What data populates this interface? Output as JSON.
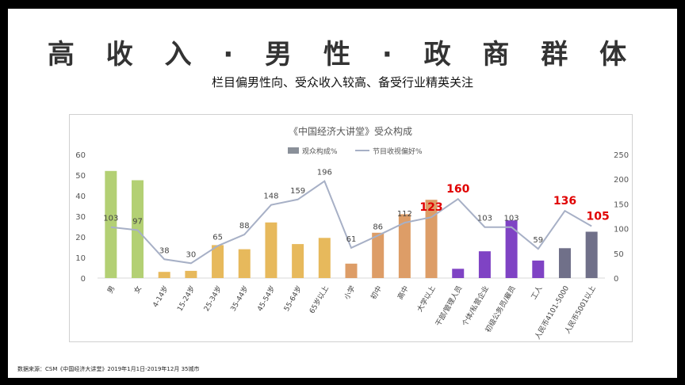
{
  "slide": {
    "title": "高 收 入 · 男 性 · 政 商 群 体",
    "subtitle": "栏目偏男性向、受众收入较高、备受行业精英关注",
    "source": "数据来源：CSM《中国经济大讲堂》2019年1月1日-2019年12月 35城市"
  },
  "chart_data": {
    "type": "bar",
    "title": "《中国经济大讲堂》受众构成",
    "categories": [
      "男",
      "女",
      "4-14岁",
      "15-24岁",
      "25-34岁",
      "35-44岁",
      "45-54岁",
      "55-64岁",
      "65岁以上",
      "小学",
      "初中",
      "高中",
      "大学以上",
      "干部/管理人员",
      "个体/私营企业",
      "初级公务员/雇员",
      "工人",
      "人民币4101-5000",
      "人民币5001以上"
    ],
    "series": [
      {
        "name": "观众构成%",
        "type": "bar",
        "axis": "left",
        "values": [
          52,
          47.5,
          3,
          3.5,
          16,
          14,
          27,
          16.5,
          19.5,
          7,
          22,
          31,
          38,
          4.5,
          13,
          28,
          8.5,
          14.5,
          22.5
        ],
        "colors": [
          "#b3d074",
          "#b3d074",
          "#e7b95c",
          "#e7b95c",
          "#e7b95c",
          "#e7b95c",
          "#e7b95c",
          "#e7b95c",
          "#e7b95c",
          "#dd9d67",
          "#dd9d67",
          "#dd9d67",
          "#dd9d67",
          "#7f43c4",
          "#7f43c4",
          "#7f43c4",
          "#7f43c4",
          "#707089",
          "#707089"
        ]
      },
      {
        "name": "节目收视偏好%",
        "type": "line",
        "axis": "right",
        "values": [
          103,
          97,
          38,
          30,
          65,
          88,
          148,
          159,
          196,
          61,
          86,
          112,
          123,
          160,
          103,
          103,
          59,
          136,
          105
        ],
        "color": "#a7b0c6",
        "highlight_indices": [
          12,
          13,
          17,
          18
        ],
        "highlight_color": "#e00000"
      }
    ],
    "y_left": {
      "min": 0,
      "max": 60,
      "ticks": [
        0,
        10,
        20,
        30,
        40,
        50,
        60
      ]
    },
    "y_right": {
      "min": 0,
      "max": 250,
      "ticks": [
        0,
        50,
        100,
        150,
        200,
        250
      ]
    },
    "legend_position": "top-center",
    "legend_bar_color": "#8a9099",
    "legend_line_color": "#a7b0c6",
    "grid": false
  }
}
